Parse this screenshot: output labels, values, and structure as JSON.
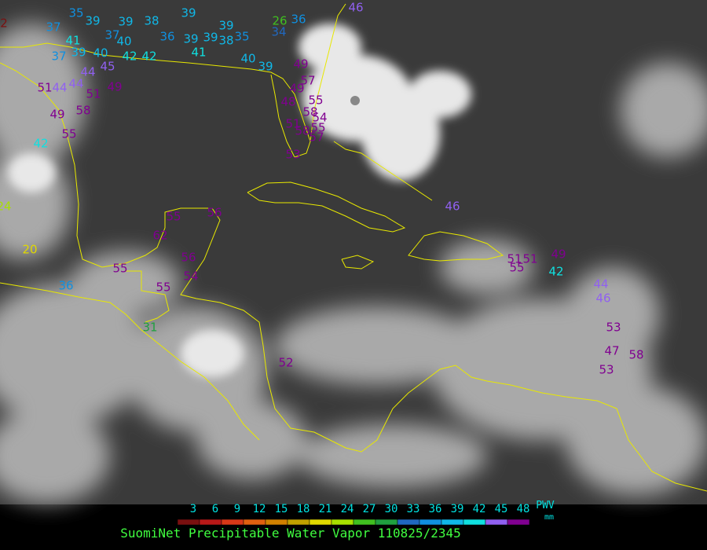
{
  "stations": [
    {
      "value": 2
    },
    {
      "value": 35
    },
    {
      "value": 37
    },
    {
      "value": 41
    },
    {
      "value": 37
    },
    {
      "value": 39
    },
    {
      "value": 40
    },
    {
      "value": 39
    },
    {
      "value": 39
    },
    {
      "value": 38
    },
    {
      "value": 39
    },
    {
      "value": 37
    },
    {
      "value": 40
    },
    {
      "value": 36
    },
    {
      "value": 39
    },
    {
      "value": 39
    },
    {
      "value": 38
    },
    {
      "value": 35
    },
    {
      "value": 39
    },
    {
      "value": 26
    },
    {
      "value": 36
    },
    {
      "value": 34
    },
    {
      "value": 42
    },
    {
      "value": 42
    },
    {
      "value": 41
    },
    {
      "value": 40
    },
    {
      "value": 39
    },
    {
      "value": 44
    },
    {
      "value": 45
    },
    {
      "value": 44
    },
    {
      "value": 51
    },
    {
      "value": 44
    },
    {
      "value": 51
    },
    {
      "value": 49
    },
    {
      "value": 49
    },
    {
      "value": 58
    },
    {
      "value": 42
    },
    {
      "value": 55
    },
    {
      "value": 49
    },
    {
      "value": 57
    },
    {
      "value": 49
    },
    {
      "value": 55
    },
    {
      "value": 48
    },
    {
      "value": 58
    },
    {
      "value": 54
    },
    {
      "value": 51
    },
    {
      "value": 55
    },
    {
      "value": 57
    },
    {
      "value": 58
    },
    {
      "value": 53
    },
    {
      "value": 24
    },
    {
      "value": 20
    },
    {
      "value": 55
    },
    {
      "value": 56
    },
    {
      "value": 62
    },
    {
      "value": 56
    },
    {
      "value": 55
    },
    {
      "value": 54
    },
    {
      "value": 55
    },
    {
      "value": 36
    },
    {
      "value": 31
    },
    {
      "value": 52
    },
    {
      "value": 46
    },
    {
      "value": 51
    },
    {
      "value": 51
    },
    {
      "value": 55
    },
    {
      "value": 49
    },
    {
      "value": 42
    },
    {
      "value": 44
    },
    {
      "value": 46
    },
    {
      "value": 53
    },
    {
      "value": 47
    },
    {
      "value": 58
    },
    {
      "value": 53
    },
    {
      "value": 46
    }
  ],
  "legend": {
    "ticks": [
      3,
      6,
      9,
      12,
      15,
      18,
      21,
      24,
      27,
      30,
      33,
      36,
      39,
      42,
      45,
      48
    ],
    "colors": [
      "#7a1010",
      "#b81818",
      "#d83818",
      "#e06010",
      "#d08000",
      "#c0a000",
      "#e0d800",
      "#a8e000",
      "#40c020",
      "#20a040",
      "#2068c0",
      "#1090e0",
      "#10b8e8",
      "#10e0e0",
      "#9060f0",
      "#800090"
    ],
    "unit_label": "PWV",
    "unit": "mm"
  },
  "footer": {
    "title": "SuomiNet Precipitable Water Vapor 110825/2345"
  }
}
